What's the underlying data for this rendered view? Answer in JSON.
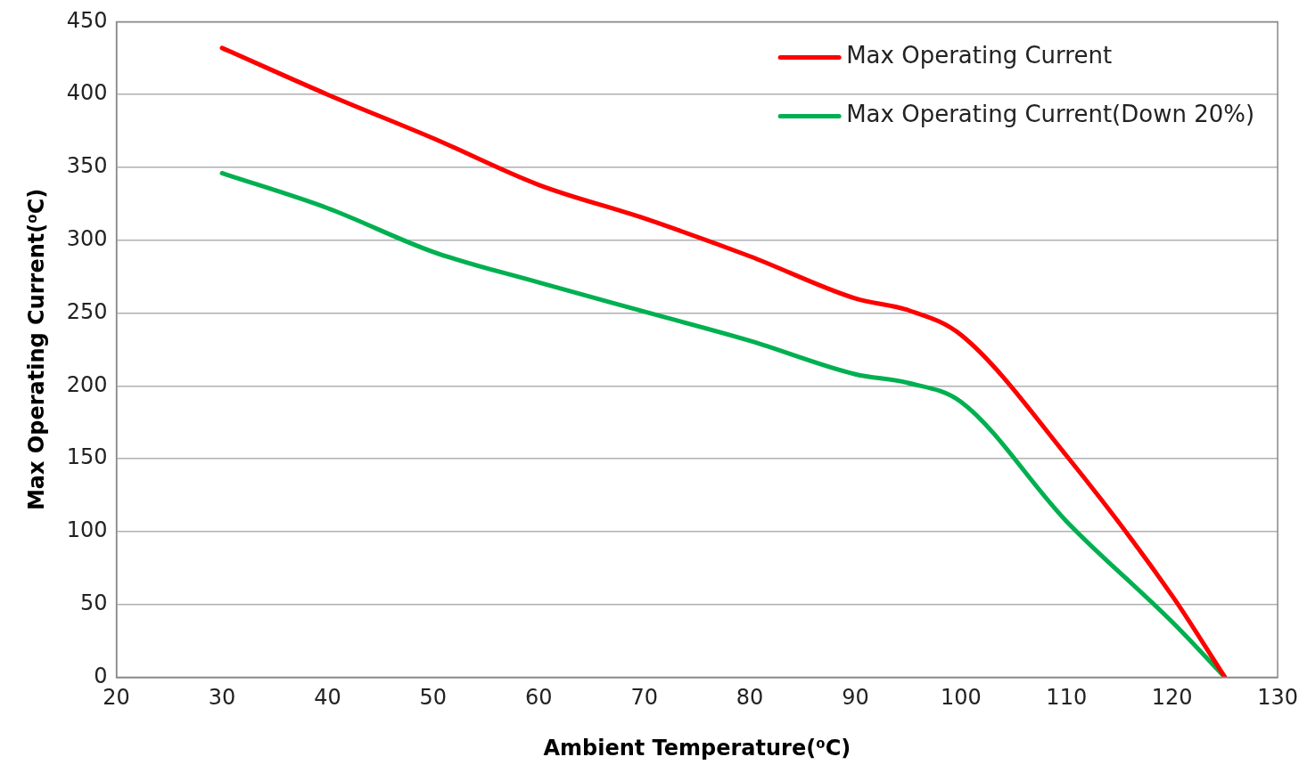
{
  "chart_data": {
    "type": "line",
    "xlabel": "Ambient Temperature(⁰C)",
    "ylabel": "Max Operating Current(⁰C)",
    "series": [
      {
        "name": "Max Operating Current",
        "color": "#ff0000",
        "x": [
          30,
          40,
          50,
          60,
          70,
          80,
          90,
          95,
          100,
          110,
          120,
          125
        ],
        "values": [
          432,
          400,
          370,
          338,
          315,
          289,
          260,
          252,
          235,
          152,
          56,
          0
        ]
      },
      {
        "name": "Max Operating Current(Down 20%)",
        "color": "#00b050",
        "x": [
          30,
          40,
          50,
          60,
          70,
          80,
          90,
          95,
          100,
          110,
          120,
          125
        ],
        "values": [
          346,
          322,
          292,
          271,
          251,
          231,
          208,
          202,
          189,
          107,
          38,
          0
        ]
      }
    ],
    "xlim": [
      20,
      130
    ],
    "xticks": [
      20,
      30,
      40,
      50,
      60,
      70,
      80,
      90,
      100,
      110,
      120,
      130
    ],
    "ylim": [
      0,
      450
    ],
    "yticks": [
      0,
      50,
      100,
      150,
      200,
      250,
      300,
      350,
      400,
      450
    ],
    "grid": "y",
    "legend": "top right",
    "marker": "none",
    "line_style": "solid"
  }
}
